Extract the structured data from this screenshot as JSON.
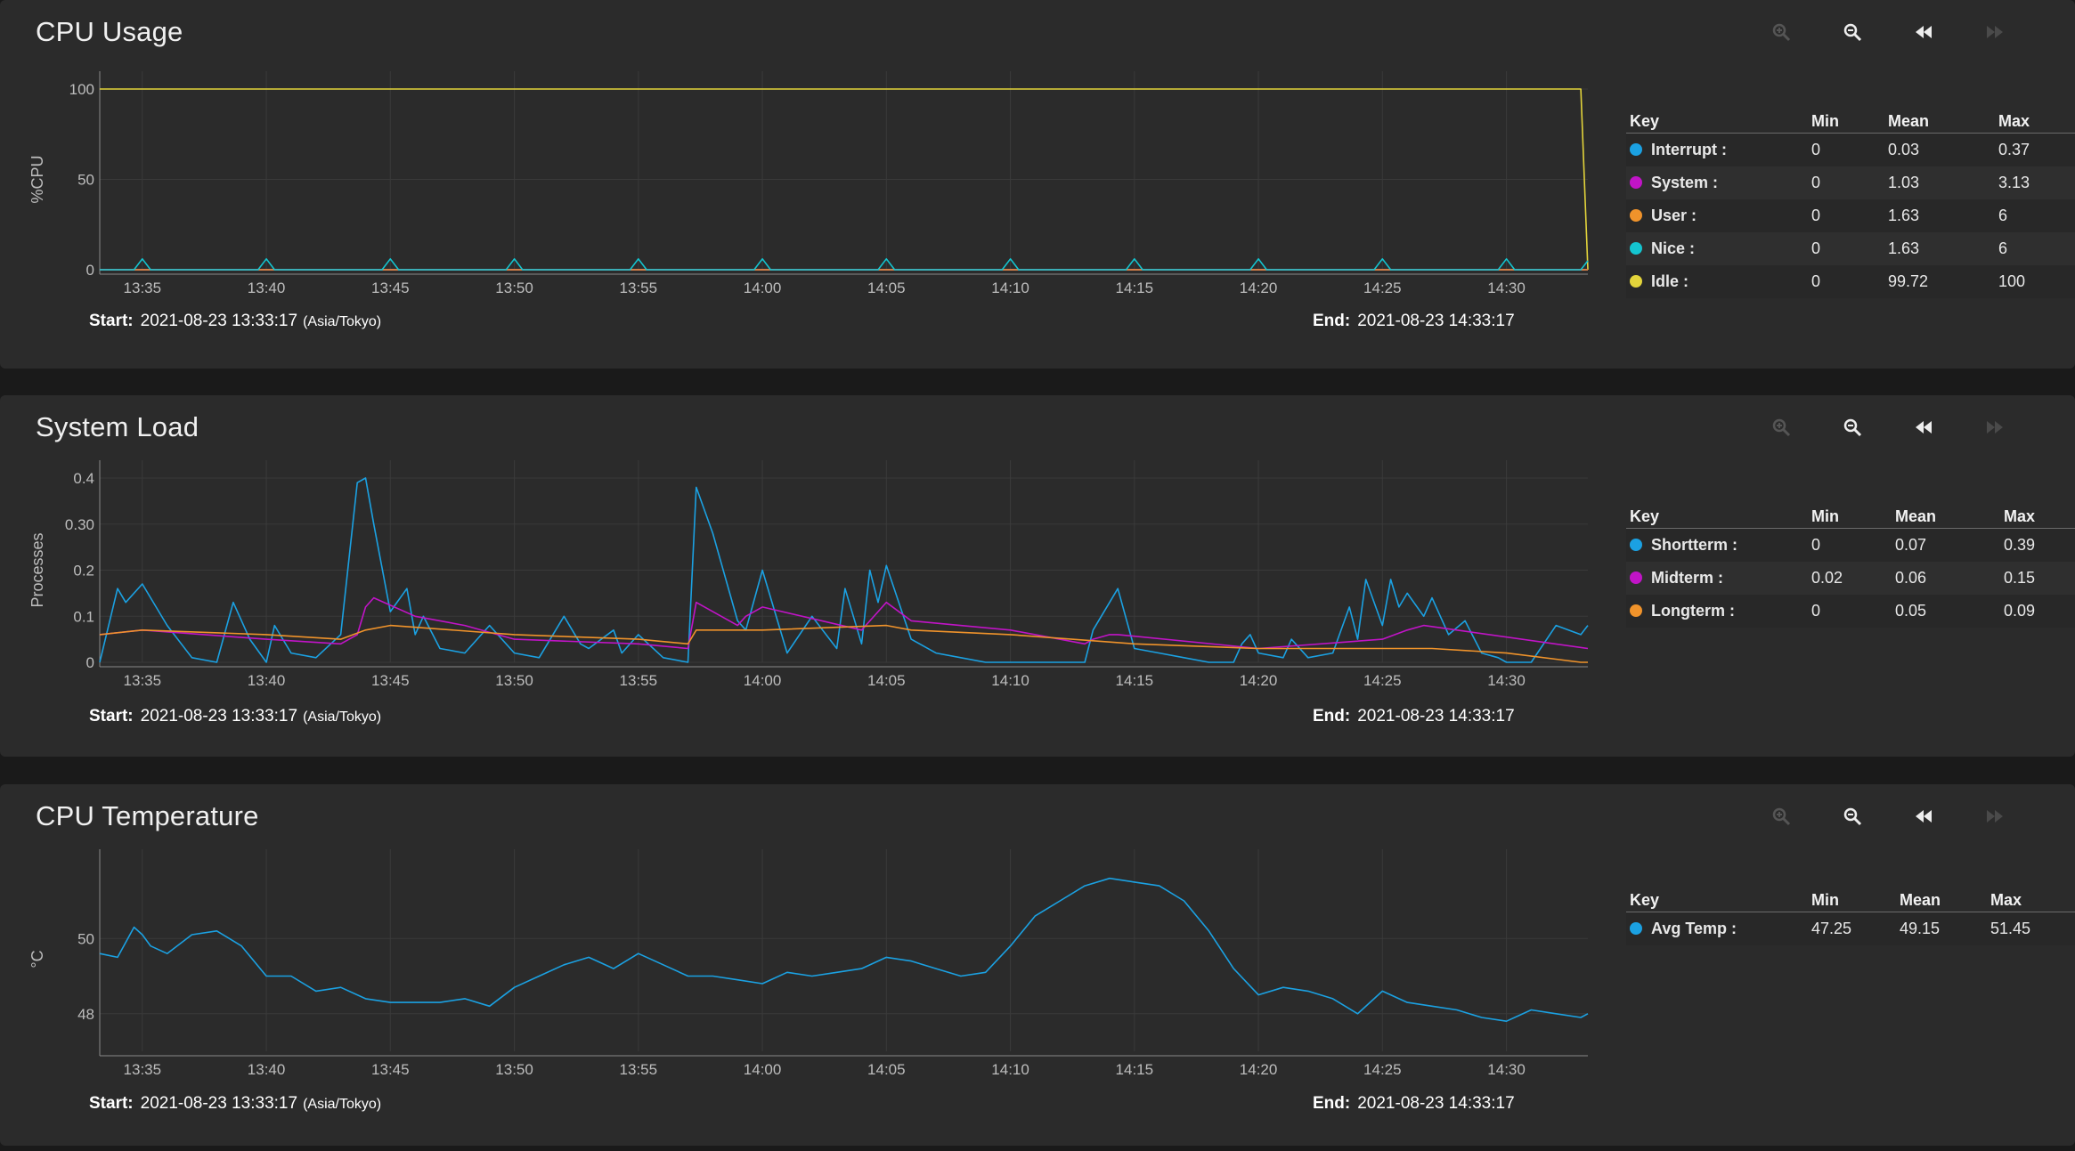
{
  "footer_labels": {
    "start": "Start:",
    "end": "End:"
  },
  "toolbar_icons": [
    "zoom-in-icon",
    "zoom-out-icon",
    "step-back-icon",
    "step-forward-icon"
  ],
  "legend_headers": [
    "Key",
    "Min",
    "Mean",
    "Max"
  ],
  "charts": [
    {
      "title": "CPU Usage",
      "start": "2021-08-23 13:33:17",
      "timezone": "(Asia/Tokyo)",
      "end": "2021-08-23 14:33:17",
      "legend": [
        {
          "key": "Interrupt :",
          "color": "#1ba1e2",
          "min": "0",
          "mean": "0.03",
          "max": "0.37"
        },
        {
          "key": "System :",
          "color": "#c114c7",
          "min": "0",
          "mean": "1.03",
          "max": "3.13"
        },
        {
          "key": "User :",
          "color": "#f0932b",
          "min": "0",
          "mean": "1.63",
          "max": "6"
        },
        {
          "key": "Nice :",
          "color": "#14c5d0",
          "min": "0",
          "mean": "1.63",
          "max": "6"
        },
        {
          "key": "Idle :",
          "color": "#e3d43b",
          "min": "0",
          "mean": "99.72",
          "max": "100"
        }
      ]
    },
    {
      "title": "System Load",
      "start": "2021-08-23 13:33:17",
      "timezone": "(Asia/Tokyo)",
      "end": "2021-08-23 14:33:17",
      "legend": [
        {
          "key": "Shortterm :",
          "color": "#1ba1e2",
          "min": "0",
          "mean": "0.07",
          "max": "0.39"
        },
        {
          "key": "Midterm :",
          "color": "#c114c7",
          "min": "0.02",
          "mean": "0.06",
          "max": "0.15"
        },
        {
          "key": "Longterm :",
          "color": "#f0932b",
          "min": "0",
          "mean": "0.05",
          "max": "0.09"
        }
      ]
    },
    {
      "title": "CPU Temperature",
      "start": "2021-08-23 13:33:17",
      "timezone": "(Asia/Tokyo)",
      "end": "2021-08-23 14:33:17",
      "legend": [
        {
          "key": "Avg Temp :",
          "color": "#1ba1e2",
          "min": "47.25",
          "mean": "49.15",
          "max": "51.45"
        }
      ]
    }
  ],
  "chart_data": [
    {
      "type": "line",
      "title": "CPU Usage",
      "ylabel": "%CPU",
      "ylim": [
        0,
        100
      ],
      "yticks": [
        "0",
        "50",
        "100"
      ],
      "x_ticks": [
        "13:35",
        "13:40",
        "13:45",
        "13:50",
        "13:55",
        "14:00",
        "14:05",
        "14:10",
        "14:15",
        "14:20",
        "14:25",
        "14:30"
      ],
      "x_range": [
        "13:33:17",
        "14:33:17"
      ],
      "grid": true,
      "series": [
        {
          "name": "Idle",
          "color": "#e3d43b",
          "x": [
            "13:33:17",
            "14:33:00",
            "14:33:17"
          ],
          "y": [
            100,
            100,
            0
          ]
        },
        {
          "name": "Interrupt",
          "color": "#1ba1e2",
          "x": [
            "13:33:17",
            "14:33:17"
          ],
          "y": [
            0,
            0
          ]
        },
        {
          "name": "System",
          "color": "#c114c7",
          "x": [
            "13:33:17",
            "14:33:17"
          ],
          "y": [
            0,
            0
          ]
        },
        {
          "name": "User",
          "color": "#f0932b",
          "x": [
            "13:33:17",
            "14:33:17"
          ],
          "y": [
            0,
            0
          ]
        },
        {
          "name": "Nice",
          "color": "#14c5d0",
          "x": [
            "13:33:17",
            "13:34:40",
            "13:35:00",
            "13:35:20",
            "13:39:40",
            "13:40:00",
            "13:40:20",
            "13:44:40",
            "13:45:00",
            "13:45:20",
            "13:49:40",
            "13:50:00",
            "13:50:20",
            "13:54:40",
            "13:55:00",
            "13:55:20",
            "13:59:40",
            "14:00:00",
            "14:00:20",
            "14:04:40",
            "14:05:00",
            "14:05:20",
            "14:09:40",
            "14:10:00",
            "14:10:20",
            "14:14:40",
            "14:15:00",
            "14:15:20",
            "14:19:40",
            "14:20:00",
            "14:20:20",
            "14:24:40",
            "14:25:00",
            "14:25:20",
            "14:29:40",
            "14:30:00",
            "14:30:20",
            "14:33:00",
            "14:33:17"
          ],
          "y": [
            0,
            0,
            6,
            0,
            0,
            6,
            0,
            0,
            6,
            0,
            0,
            6,
            0,
            0,
            6,
            0,
            0,
            6,
            0,
            0,
            6,
            0,
            0,
            6,
            0,
            0,
            6,
            0,
            0,
            6,
            0,
            0,
            6,
            0,
            0,
            6,
            0,
            0,
            5
          ]
        }
      ]
    },
    {
      "type": "line",
      "title": "System Load",
      "ylabel": "Processes",
      "ylim": [
        0,
        0.4
      ],
      "yticks": [
        "0",
        "0.1",
        "0.2",
        "0.30",
        "0.4"
      ],
      "x_ticks": [
        "13:35",
        "13:40",
        "13:45",
        "13:50",
        "13:55",
        "14:00",
        "14:05",
        "14:10",
        "14:15",
        "14:20",
        "14:25",
        "14:30"
      ],
      "x_range": [
        "13:33:17",
        "14:33:17"
      ],
      "grid": true,
      "series": [
        {
          "name": "Shortterm",
          "color": "#1ba1e2",
          "x": [
            "13:33:17",
            "13:34:00",
            "13:34:20",
            "13:35:00",
            "13:36:00",
            "13:37:00",
            "13:38:00",
            "13:38:40",
            "13:39:20",
            "13:40:00",
            "13:40:20",
            "13:41:00",
            "13:42:00",
            "13:43:00",
            "13:43:40",
            "13:44:00",
            "13:44:20",
            "13:45:00",
            "13:45:40",
            "13:46:00",
            "13:46:20",
            "13:47:00",
            "13:48:00",
            "13:49:00",
            "13:50:00",
            "13:51:00",
            "13:52:00",
            "13:52:40",
            "13:53:00",
            "13:54:00",
            "13:54:20",
            "13:55:00",
            "13:56:00",
            "13:57:00",
            "13:57:20",
            "13:58:00",
            "13:59:00",
            "13:59:20",
            "14:00:00",
            "14:01:00",
            "14:02:00",
            "14:03:00",
            "14:03:20",
            "14:04:00",
            "14:04:20",
            "14:04:40",
            "14:05:00",
            "14:06:00",
            "14:07:00",
            "14:08:00",
            "14:09:00",
            "14:10:00",
            "14:11:00",
            "14:12:00",
            "14:13:00",
            "14:13:20",
            "14:14:20",
            "14:15:00",
            "14:16:00",
            "14:17:00",
            "14:18:00",
            "14:19:00",
            "14:19:20",
            "14:19:40",
            "14:20:00",
            "14:21:00",
            "14:21:20",
            "14:22:00",
            "14:23:00",
            "14:23:40",
            "14:24:00",
            "14:24:20",
            "14:25:00",
            "14:25:20",
            "14:25:40",
            "14:26:00",
            "14:26:40",
            "14:27:00",
            "14:27:40",
            "14:28:20",
            "14:29:00",
            "14:29:40",
            "14:30:00",
            "14:31:00",
            "14:32:00",
            "14:33:00",
            "14:33:17"
          ],
          "y": [
            0,
            0.16,
            0.13,
            0.17,
            0.08,
            0.01,
            0,
            0.13,
            0.05,
            0,
            0.08,
            0.02,
            0.01,
            0.06,
            0.39,
            0.4,
            0.3,
            0.11,
            0.16,
            0.06,
            0.1,
            0.03,
            0.02,
            0.08,
            0.02,
            0.01,
            0.1,
            0.04,
            0.03,
            0.07,
            0.02,
            0.06,
            0.01,
            0,
            0.38,
            0.28,
            0.09,
            0.07,
            0.2,
            0.02,
            0.1,
            0.03,
            0.16,
            0.04,
            0.2,
            0.13,
            0.21,
            0.05,
            0.02,
            0.01,
            0,
            0,
            0,
            0,
            0,
            0.07,
            0.16,
            0.03,
            0.02,
            0.01,
            0,
            0,
            0.04,
            0.06,
            0.02,
            0.01,
            0.05,
            0.01,
            0.02,
            0.12,
            0.05,
            0.18,
            0.08,
            0.18,
            0.12,
            0.15,
            0.1,
            0.14,
            0.06,
            0.09,
            0.02,
            0.01,
            0,
            0,
            0.08,
            0.06,
            0.08
          ]
        },
        {
          "name": "Midterm",
          "color": "#c114c7",
          "x": [
            "13:33:17",
            "13:35:00",
            "13:40:00",
            "13:43:00",
            "13:43:40",
            "13:44:00",
            "13:44:20",
            "13:46:00",
            "13:48:00",
            "13:50:00",
            "13:55:00",
            "13:57:00",
            "13:57:20",
            "13:59:00",
            "13:59:20",
            "14:00:00",
            "14:04:00",
            "14:04:40",
            "14:05:00",
            "14:06:00",
            "14:10:00",
            "14:13:00",
            "14:13:20",
            "14:14:00",
            "14:14:20",
            "14:20:00",
            "14:25:00",
            "14:26:00",
            "14:26:40",
            "14:28:00",
            "14:33:17"
          ],
          "y": [
            0.06,
            0.07,
            0.05,
            0.04,
            0.06,
            0.12,
            0.14,
            0.1,
            0.08,
            0.05,
            0.04,
            0.03,
            0.13,
            0.08,
            0.1,
            0.12,
            0.07,
            0.11,
            0.13,
            0.09,
            0.07,
            0.04,
            0.05,
            0.06,
            0.06,
            0.03,
            0.05,
            0.07,
            0.08,
            0.07,
            0.03
          ]
        },
        {
          "name": "Longterm",
          "color": "#f0932b",
          "x": [
            "13:33:17",
            "13:35:00",
            "13:40:00",
            "13:43:00",
            "13:44:00",
            "13:45:00",
            "13:50:00",
            "13:55:00",
            "13:57:00",
            "13:57:20",
            "14:00:00",
            "14:05:00",
            "14:06:00",
            "14:10:00",
            "14:15:00",
            "14:20:00",
            "14:25:00",
            "14:27:00",
            "14:30:00",
            "14:33:00",
            "14:33:17"
          ],
          "y": [
            0.06,
            0.07,
            0.06,
            0.05,
            0.07,
            0.08,
            0.06,
            0.05,
            0.04,
            0.07,
            0.07,
            0.08,
            0.07,
            0.06,
            0.04,
            0.03,
            0.03,
            0.03,
            0.02,
            0,
            0
          ]
        }
      ]
    },
    {
      "type": "line",
      "title": "CPU Temperature",
      "ylabel": "°C",
      "ylim": [
        47.0,
        51.9
      ],
      "yticks": [
        "48",
        "50"
      ],
      "x_ticks": [
        "13:35",
        "13:40",
        "13:45",
        "13:50",
        "13:55",
        "14:00",
        "14:05",
        "14:10",
        "14:15",
        "14:20",
        "14:25",
        "14:30"
      ],
      "x_range": [
        "13:33:17",
        "14:33:17"
      ],
      "grid": true,
      "series": [
        {
          "name": "Avg Temp",
          "color": "#1ba1e2",
          "x": [
            "13:33:17",
            "13:34:00",
            "13:34:40",
            "13:35:00",
            "13:35:20",
            "13:36:00",
            "13:37:00",
            "13:38:00",
            "13:39:00",
            "13:40:00",
            "13:41:00",
            "13:42:00",
            "13:43:00",
            "13:44:00",
            "13:45:00",
            "13:46:00",
            "13:47:00",
            "13:48:00",
            "13:49:00",
            "13:50:00",
            "13:51:00",
            "13:52:00",
            "13:53:00",
            "13:54:00",
            "13:55:00",
            "13:56:00",
            "13:57:00",
            "13:58:00",
            "13:59:00",
            "14:00:00",
            "14:01:00",
            "14:02:00",
            "14:03:00",
            "14:04:00",
            "14:05:00",
            "14:06:00",
            "14:07:00",
            "14:08:00",
            "14:09:00",
            "14:10:00",
            "14:11:00",
            "14:12:00",
            "14:13:00",
            "14:14:00",
            "14:15:00",
            "14:16:00",
            "14:17:00",
            "14:18:00",
            "14:19:00",
            "14:20:00",
            "14:21:00",
            "14:22:00",
            "14:23:00",
            "14:24:00",
            "14:25:00",
            "14:26:00",
            "14:27:00",
            "14:28:00",
            "14:29:00",
            "14:30:00",
            "14:31:00",
            "14:32:00",
            "14:33:00",
            "14:33:17"
          ],
          "y": [
            49.6,
            49.5,
            50.3,
            50.1,
            49.8,
            49.6,
            50.1,
            50.2,
            49.8,
            49.0,
            49.0,
            48.6,
            48.7,
            48.4,
            48.3,
            48.3,
            48.3,
            48.4,
            48.2,
            48.7,
            49.0,
            49.3,
            49.5,
            49.2,
            49.6,
            49.3,
            49.0,
            49.0,
            48.9,
            48.8,
            49.1,
            49.0,
            49.1,
            49.2,
            49.5,
            49.4,
            49.2,
            49.0,
            49.1,
            49.8,
            50.6,
            51.0,
            51.4,
            51.6,
            51.5,
            51.4,
            51.0,
            50.2,
            49.2,
            48.5,
            48.7,
            48.6,
            48.4,
            48.0,
            48.6,
            48.3,
            48.2,
            48.1,
            47.9,
            47.8,
            48.1,
            48.0,
            47.9,
            48.0
          ]
        }
      ]
    }
  ]
}
